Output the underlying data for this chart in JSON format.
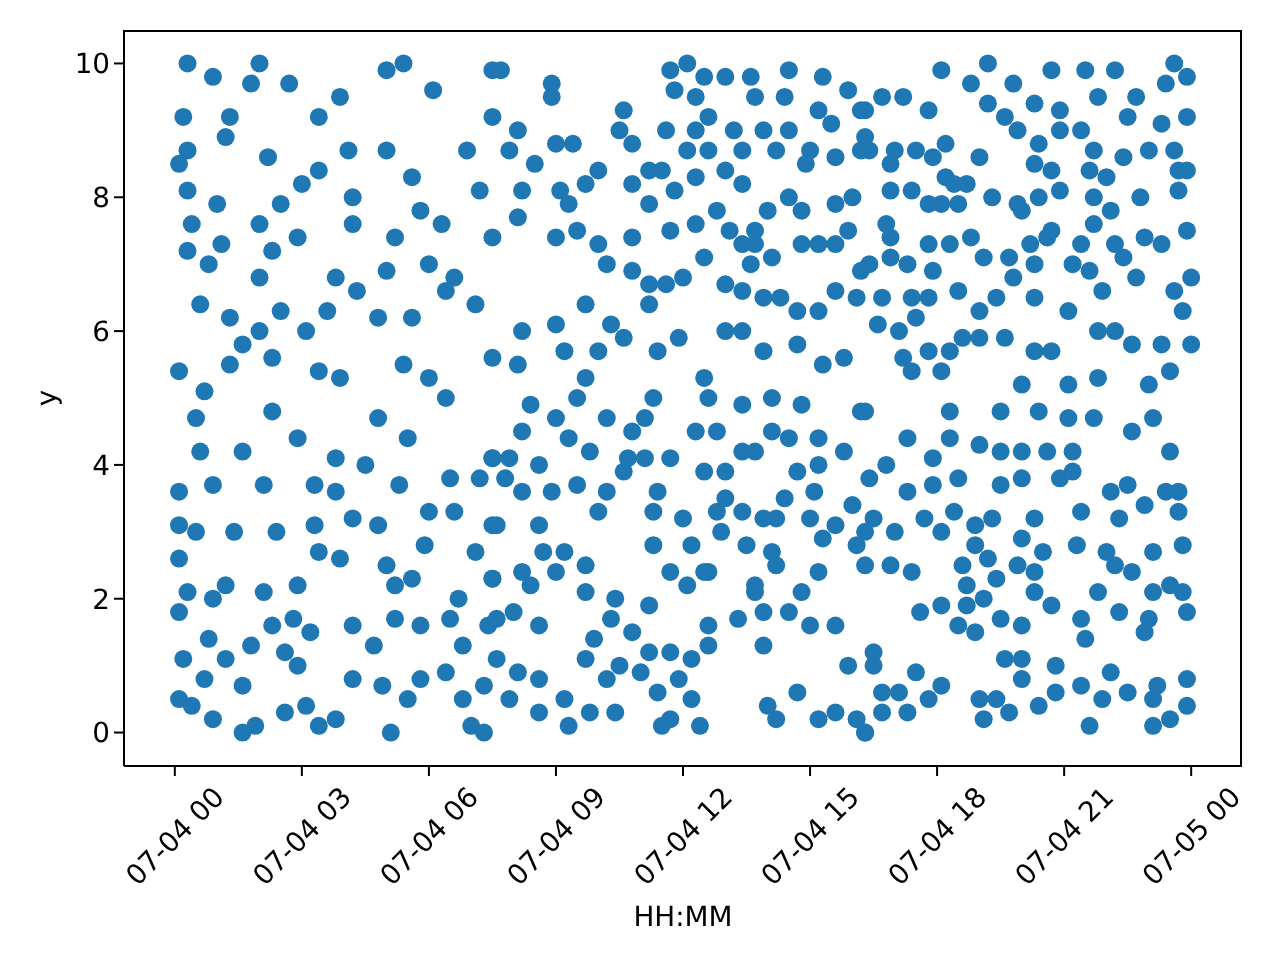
{
  "chart_data": {
    "type": "scatter",
    "xlabel": "HH:MM",
    "ylabel": "y",
    "color": "#1f77b4",
    "marker": "circle",
    "xlim": [
      "--07-03T22:48",
      "--07-05T01:12"
    ],
    "xticks": [
      {
        "value": "--07-04T00:00",
        "label": "07-04 00"
      },
      {
        "value": "--07-04T03:00",
        "label": "07-04 03"
      },
      {
        "value": "--07-04T06:00",
        "label": "07-04 06"
      },
      {
        "value": "--07-04T09:00",
        "label": "07-04 09"
      },
      {
        "value": "--07-04T12:00",
        "label": "07-04 12"
      },
      {
        "value": "--07-04T15:00",
        "label": "07-04 15"
      },
      {
        "value": "--07-04T18:00",
        "label": "07-04 18"
      },
      {
        "value": "--07-04T21:00",
        "label": "07-04 21"
      },
      {
        "value": "--07-05T00:00",
        "label": "07-05 00"
      }
    ],
    "ylim": [
      -0.5,
      10.5
    ],
    "yticks": [
      0,
      2,
      4,
      6,
      8,
      10
    ],
    "x": [
      "--07-04T00:18",
      "--07-04T02:00",
      "--07-04T00:54",
      "--07-04T01:48",
      "--07-04T02:42",
      "--07-04T00:12",
      "--07-04T01:18",
      "--07-04T03:24",
      "--07-04T05:00",
      "--07-04T05:24",
      "--07-04T03:54",
      "--07-04T06:06",
      "--07-04T07:30",
      "--07-04T00:06",
      "--07-04T00:18",
      "--07-04T01:12",
      "--07-04T02:12",
      "--07-04T03:00",
      "--07-04T03:24",
      "--07-04T04:06",
      "--07-04T05:00",
      "--07-04T05:36",
      "--07-04T06:54",
      "--07-04T00:18",
      "--07-04T01:00",
      "--07-04T02:30",
      "--07-04T04:12",
      "--07-04T05:48",
      "--07-04T06:18",
      "--07-04T07:12",
      "--07-04T00:24",
      "--07-04T02:00",
      "--07-04T02:54",
      "--07-04T04:12",
      "--07-04T05:12",
      "--07-04T07:30",
      "--07-04T00:18",
      "--07-04T01:06",
      "--07-04T02:18",
      "--07-04T03:48",
      "--07-04T05:00",
      "--07-04T06:00",
      "--07-04T06:36",
      "--07-04T00:48",
      "--07-04T00:36",
      "--07-04T02:00",
      "--07-04T01:18",
      "--07-04T02:00",
      "--07-04T02:30",
      "--07-04T03:06",
      "--07-04T03:36",
      "--07-04T04:18",
      "--07-04T04:48",
      "--07-04T05:36",
      "--07-04T06:24",
      "--07-04T07:06",
      "--07-04T00:06",
      "--07-04T00:42",
      "--07-04T01:18",
      "--07-04T01:36",
      "--07-04T02:18",
      "--07-04T03:24",
      "--07-04T03:54",
      "--07-04T05:24",
      "--07-04T06:00",
      "--07-04T07:30",
      "--07-04T00:06",
      "--07-04T00:06",
      "--07-04T00:30",
      "--07-04T00:06",
      "--07-04T00:18",
      "--07-04T00:06",
      "--07-04T00:12",
      "--07-04T00:06",
      "--07-04T00:24",
      "--07-04T00:30",
      "--07-04T00:36",
      "--07-04T00:54",
      "--07-04T01:24",
      "--07-04T01:12",
      "--07-04T00:54",
      "--07-04T00:48",
      "--07-04T01:12",
      "--07-04T00:42",
      "--07-04T00:54",
      "--07-04T01:36",
      "--07-04T01:54",
      "--07-04T01:36",
      "--07-04T01:48",
      "--07-04T02:06",
      "--07-04T01:36",
      "--07-04T02:06",
      "--07-04T02:24",
      "--07-04T02:18",
      "--07-04T02:54",
      "--07-04T03:18",
      "--07-04T03:18",
      "--07-04T02:54",
      "--07-04T02:48",
      "--07-04T02:18",
      "--07-04T02:36",
      "--07-04T02:54",
      "--07-04T03:06",
      "--07-04T02:36",
      "--07-04T03:24",
      "--07-04T03:48",
      "--07-04T03:12",
      "--07-04T03:48",
      "--07-04T03:48",
      "--07-04T03:24",
      "--07-04T03:54",
      "--07-04T04:12",
      "--07-04T04:48",
      "--07-04T04:30",
      "--07-04T04:48",
      "--07-04T05:30",
      "--07-04T05:18",
      "--07-04T06:00",
      "--07-04T05:54",
      "--07-04T05:00",
      "--07-04T05:12",
      "--07-04T05:36",
      "--07-04T05:12",
      "--07-04T05:48",
      "--07-04T04:12",
      "--07-04T04:42",
      "--07-04T04:12",
      "--07-04T04:54",
      "--07-04T05:06",
      "--07-04T05:30",
      "--07-04T05:48",
      "--07-04T06:24",
      "--07-04T06:48",
      "--07-04T07:00",
      "--07-04T07:18",
      "--07-04T06:30",
      "--07-04T06:36",
      "--07-04T07:06",
      "--07-04T06:42",
      "--07-04T06:30",
      "--07-04T06:48",
      "--07-04T07:24",
      "--07-04T07:30",
      "--07-04T07:30",
      "--07-04T07:12",
      "--07-04T07:30",
      "--07-04T06:24",
      "--07-04T07:18",
      "--07-04T07:42",
      "--07-04T08:54",
      "--07-04T08:54",
      "--07-04T07:30",
      "--07-04T08:06",
      "--07-04T07:54",
      "--07-04T08:30",
      "--07-04T09:00",
      "--07-04T09:24",
      "--07-04T08:12",
      "--07-04T09:06",
      "--07-04T09:18",
      "--07-04T08:06",
      "--07-04T09:30",
      "--07-04T09:00",
      "--07-04T10:00",
      "--07-04T10:36",
      "--07-04T10:30",
      "--07-04T10:48",
      "--07-04T09:42",
      "--07-04T10:48",
      "--07-04T11:12",
      "--07-04T10:00",
      "--07-04T10:12",
      "--07-04T10:48",
      "--07-04T10:48",
      "--07-04T11:42",
      "--07-04T11:12",
      "--07-04T11:36",
      "--07-04T12:00",
      "--07-04T11:42",
      "--07-04T12:06",
      "--07-04T11:48",
      "--07-04T12:30",
      "--07-04T13:00",
      "--07-04T13:36",
      "--07-04T14:30",
      "--07-04T15:18",
      "--07-04T15:54",
      "--07-04T12:18",
      "--07-04T12:36",
      "--07-04T13:42",
      "--07-04T14:24",
      "--07-04T15:12",
      "--07-04T11:36",
      "--07-04T12:18",
      "--07-04T13:12",
      "--07-04T13:54",
      "--07-04T14:30",
      "--07-04T15:30",
      "--07-04T16:12",
      "--07-04T12:06",
      "--07-04T12:36",
      "--07-04T13:24",
      "--07-04T14:12",
      "--07-04T15:00",
      "--07-04T16:12",
      "--07-04T11:30",
      "--07-04T12:18",
      "--07-04T13:00",
      "--07-04T14:54",
      "--07-04T15:36",
      "--07-04T11:12",
      "--07-04T11:48",
      "--07-04T13:24",
      "--07-04T14:30",
      "--07-04T16:00",
      "--07-04T12:48",
      "--07-04T14:00",
      "--07-04T14:48",
      "--07-04T15:36",
      "--07-04T12:18",
      "--07-04T13:06",
      "--07-04T13:42",
      "--07-04T13:42",
      "--07-04T15:54",
      "--07-04T12:30",
      "--07-04T13:24",
      "--07-04T14:06",
      "--07-04T14:48",
      "--07-04T15:12",
      "--07-04T15:36",
      "--07-04T13:36",
      "--07-04T13:00",
      "--07-04T13:24",
      "--07-04T13:54",
      "--07-04T14:18",
      "--07-04T14:42",
      "--07-04T15:12",
      "--07-04T15:36",
      "--07-04T16:12",
      "--07-04T16:06",
      "--07-04T08:12",
      "--07-04T09:00",
      "--07-04T09:42",
      "--07-04T10:18",
      "--07-04T11:12",
      "--07-04T10:36",
      "--07-04T09:12",
      "--07-04T10:00",
      "--07-04T11:24",
      "--07-04T11:54",
      "--07-04T13:00",
      "--07-04T13:24",
      "--07-04T13:54",
      "--07-04T14:42",
      "--07-04T15:48",
      "--07-04T15:18",
      "--07-04T08:06",
      "--07-04T09:42",
      "--07-04T12:30",
      "--07-04T08:24",
      "--07-04T09:00",
      "--07-04T09:30",
      "--07-04T08:12",
      "--07-04T09:18",
      "--07-04T09:48",
      "--07-04T07:30",
      "--07-04T07:54",
      "--07-04T08:36",
      "--07-04T07:48",
      "--07-04T08:12",
      "--07-04T08:54",
      "--07-04T09:30",
      "--07-04T10:12",
      "--07-04T07:36",
      "--07-04T08:36",
      "--07-04T10:00",
      "--07-04T08:42",
      "--07-04T09:12",
      "--07-04T09:00",
      "--07-04T09:42",
      "--07-04T08:12",
      "--07-04T07:30",
      "--07-04T08:24",
      "--07-04T09:42",
      "--07-04T08:00",
      "--07-04T07:36",
      "--07-04T08:36",
      "--07-04T07:36",
      "--07-04T08:06",
      "--07-04T08:36",
      "--07-04T07:54",
      "--07-04T08:36",
      "--07-04T09:18",
      "--07-04T09:48",
      "--07-04T10:24",
      "--07-04T09:12",
      "--07-04T09:42",
      "--07-04T10:12",
      "--07-04T10:30",
      "--07-04T10:18",
      "--07-04T09:54",
      "--07-04T10:24",
      "--07-04T10:48",
      "--07-04T11:12",
      "--07-04T11:00",
      "--07-04T11:24",
      "--07-04T11:30",
      "--07-04T11:42",
      "--07-04T12:12",
      "--07-04T12:24",
      "--07-04T11:54",
      "--07-04T11:42",
      "--07-04T12:12",
      "--07-04T12:36",
      "--07-04T12:36",
      "--07-04T13:18",
      "--07-04T13:54",
      "--07-04T14:00",
      "--07-04T14:12",
      "--07-04T14:42",
      "--07-04T15:12",
      "--07-04T15:36",
      "--07-04T16:06",
      "--07-04T16:18",
      "--07-04T15:54",
      "--07-04T11:12",
      "--07-04T11:42",
      "--07-04T12:36",
      "--07-04T12:06",
      "--07-04T13:42",
      "--07-04T13:54",
      "--07-04T14:30",
      "--07-04T15:00",
      "--07-04T15:36",
      "--07-04T14:48",
      "--07-04T15:12",
      "--07-04T14:12",
      "--07-04T11:18",
      "--07-04T12:12",
      "--07-04T12:30",
      "--07-04T12:54",
      "--07-04T13:30",
      "--07-04T14:06",
      "--07-04T13:42",
      "--07-04T12:48",
      "--07-04T13:24",
      "--07-04T11:18",
      "--07-04T12:00",
      "--07-04T11:24",
      "--07-04T10:36",
      "--07-04T11:06",
      "--07-04T10:42",
      "--07-04T11:42",
      "--07-04T12:30",
      "--07-04T13:00",
      "--07-04T13:24",
      "--07-04T13:42",
      "--07-04T13:00",
      "--07-04T13:54",
      "--07-04T14:12",
      "--07-04T14:24",
      "--07-04T15:00",
      "--07-04T15:18",
      "--07-04T16:06",
      "--07-04T16:00",
      "--07-04T15:36",
      "--07-04T15:06",
      "--07-04T14:42",
      "--07-04T15:12",
      "--07-04T15:48",
      "--07-04T14:06",
      "--07-04T14:30",
      "--07-04T15:12",
      "--07-04T12:48",
      "--07-04T12:18",
      "--07-04T11:06",
      "--07-04T10:48",
      "--07-04T10:12",
      "--07-04T11:18",
      "--07-04T12:36",
      "--07-04T13:24",
      "--07-04T14:06",
      "--07-04T14:48",
      "--07-04T16:12",
      "--07-04T18:06",
      "--07-04T19:12",
      "--07-04T18:48",
      "--07-04T19:48",
      "--07-04T20:42",
      "--07-04T21:30",
      "--07-04T22:12",
      "--07-04T23:36",
      "--07-04T23:54",
      "--07-04T23:24",
      "--07-04T16:42",
      "--07-04T17:12",
      "--07-04T17:48",
      "--07-04T19:12",
      "--07-04T20:18",
      "--07-04T20:54",
      "--07-04T21:48",
      "--07-04T22:42",
      "--07-04T16:18",
      "--07-04T19:36",
      "--07-04T22:30",
      "--07-04T23:18",
      "--07-04T23:54",
      "--07-04T16:18",
      "--07-04T19:54",
      "--07-04T20:54",
      "--07-04T21:24",
      "--07-04T16:24",
      "--07-04T17:00",
      "--07-04T17:30",
      "--07-04T18:12",
      "--07-04T20:24",
      "--07-04T21:42",
      "--07-04T23:00",
      "--07-04T23:36",
      "--07-04T16:54",
      "--07-04T17:54",
      "--07-04T19:00",
      "--07-04T20:18",
      "--07-04T21:36",
      "--07-04T22:24",
      "--07-04T23:42",
      "--07-04T23:54",
      "--07-04T18:12",
      "--07-04T18:24",
      "--07-04T20:42",
      "--07-04T20:54",
      "--07-04T22:00",
      "--07-04T16:54",
      "--07-04T17:24",
      "--07-04T18:42",
      "--07-04T23:42",
      "--07-04T17:48",
      "--07-04T18:06",
      "--07-04T18:30",
      "--07-04T19:18",
      "--07-04T19:54",
      "--07-04T20:24",
      "--07-04T21:42",
      "--07-04T22:48",
      "--07-04T20:00",
      "--07-04T22:06",
      "--07-04T16:48",
      "--07-04T16:54",
      "--07-04T17:48",
      "--07-04T18:18",
      "--07-04T18:48",
      "--07-04T20:12",
      "--07-04T20:36",
      "--07-04T20:42",
      "--07-04T21:24",
      "--07-04T21:42",
      "--07-04T22:12",
      "--07-04T22:54",
      "--07-04T23:18",
      "--07-04T23:54",
      "--07-04T16:24",
      "--07-04T16:54",
      "--07-04T17:18",
      "--07-04T17:54",
      "--07-04T19:06",
      "--07-04T19:42",
      "--07-04T20:18",
      "--07-04T21:12",
      "--07-04T21:36",
      "--07-04T21:54",
      "--07-04T22:24",
      "--07-04T22:42",
      "--07-05T00:00",
      "--07-04T23:36",
      "--07-04T23:48",
      "--07-04T16:42",
      "--07-04T17:24",
      "--07-04T17:48",
      "--07-04T18:30",
      "--07-04T19:00",
      "--07-04T19:24",
      "--07-04T19:48",
      "--07-04T20:18",
      "--07-04T21:06",
      "--07-04T16:36",
      "--07-04T17:06",
      "--07-04T17:30",
      "--07-04T18:36",
      "--07-04T19:00",
      "--07-04T19:36",
      "--07-04T20:18",
      "--07-04T20:42",
      "--07-04T21:48",
      "--07-04T22:12",
      "--07-04T22:36",
      "--07-04T23:18",
      "--07-05T00:00",
      "--07-04T17:12",
      "--07-04T17:48",
      "--07-04T18:18",
      "--07-04T17:24",
      "--07-04T18:06",
      "--07-04T20:00",
      "--07-04T21:06",
      "--07-04T21:48",
      "--07-04T23:00",
      "--07-04T23:30",
      "--07-04T16:18",
      "--07-04T18:18",
      "--07-04T19:30",
      "--07-04T20:24",
      "--07-04T21:06",
      "--07-04T21:42",
      "--07-04T22:36",
      "--07-04T23:06",
      "--07-04T17:18",
      "--07-04T18:18",
      "--07-04T19:00",
      "--07-04T19:30",
      "--07-04T20:00",
      "--07-04T20:36",
      "--07-04T21:12",
      "--07-04T23:30",
      "--07-04T16:48",
      "--07-04T17:54",
      "--07-04T16:24",
      "--07-04T17:18",
      "--07-04T17:54",
      "--07-04T18:30",
      "--07-04T19:30",
      "--07-04T20:00",
      "--07-04T20:54",
      "--07-04T21:12",
      "--07-04T22:06",
      "--07-04T22:30",
      "--07-04T23:24",
      "--07-04T23:42",
      "--07-04T16:30",
      "--07-04T17:42",
      "--07-04T18:24",
      "--07-04T18:54",
      "--07-04T19:18",
      "--07-04T20:18",
      "--07-04T21:24",
      "--07-04T22:18",
      "--07-04T22:54",
      "--07-04T23:42",
      "--07-04T16:18",
      "--07-04T17:00",
      "--07-04T18:06",
      "--07-04T18:54",
      "--07-04T20:00",
      "--07-04T20:30",
      "--07-04T21:18",
      "--07-04T22:00",
      "--07-04T23:06",
      "--07-04T23:48",
      "--07-04T16:18",
      "--07-04T16:54",
      "--07-04T17:24",
      "--07-04T18:36",
      "--07-04T19:12",
      "--07-04T19:54",
      "--07-04T20:18",
      "--07-04T22:12",
      "--07-04T22:36",
      "--07-04T18:42",
      "--07-04T19:24",
      "--07-04T20:18",
      "--07-04T23:06",
      "--07-04T23:30",
      "--07-04T23:48",
      "--07-04T17:36",
      "--07-04T18:06",
      "--07-04T19:06",
      "--07-04T18:42",
      "--07-04T20:42",
      "--07-04T21:24",
      "--07-04T21:48",
      "--07-04T22:18",
      "--07-04T23:00",
      "--07-04T23:54",
      "--07-04T18:30",
      "--07-04T19:30",
      "--07-04T18:54",
      "--07-04T20:00",
      "--07-04T21:30",
      "--07-04T22:54",
      "--07-04T16:30",
      "--07-04T16:30",
      "--07-04T17:30",
      "--07-04T18:06",
      "--07-04T19:36",
      "--07-04T20:00",
      "--07-04T20:00",
      "--07-04T20:48",
      "--07-04T21:24",
      "--07-04T22:06",
      "--07-04T23:12",
      "--07-04T23:54",
      "--07-04T16:42",
      "--07-04T17:06",
      "--07-04T17:48",
      "--07-04T16:42",
      "--07-04T17:18",
      "--07-04T16:18",
      "--07-04T19:00",
      "--07-04T19:06",
      "--07-04T19:24",
      "--07-04T19:42",
      "--07-04T20:24",
      "--07-04T20:48",
      "--07-04T21:36",
      "--07-04T21:54",
      "--07-04T22:30",
      "--07-04T23:06",
      "--07-04T23:06",
      "--07-04T23:30",
      "--07-04T23:54"
    ],
    "values": [
      10.0,
      10.0,
      9.8,
      9.7,
      9.7,
      9.2,
      9.2,
      9.2,
      9.9,
      10.0,
      9.5,
      9.6,
      9.9,
      8.5,
      8.7,
      8.9,
      8.6,
      8.2,
      8.4,
      8.7,
      8.7,
      8.3,
      8.7,
      8.1,
      7.9,
      7.9,
      8.0,
      7.8,
      7.6,
      8.1,
      7.6,
      7.6,
      7.4,
      7.6,
      7.4,
      7.4,
      7.2,
      7.3,
      7.2,
      6.8,
      6.9,
      7.0,
      6.8,
      7.0,
      6.4,
      6.8,
      6.2,
      6.0,
      6.3,
      6.0,
      6.3,
      6.6,
      6.2,
      6.2,
      6.6,
      6.4,
      5.4,
      5.1,
      5.5,
      5.8,
      5.6,
      5.4,
      5.3,
      5.5,
      5.3,
      5.6,
      3.6,
      3.1,
      3.0,
      2.6,
      2.1,
      1.8,
      1.1,
      0.5,
      0.4,
      4.7,
      4.2,
      3.7,
      3.0,
      2.2,
      2.0,
      1.4,
      1.1,
      0.8,
      0.2,
      0.0,
      0.1,
      0.7,
      1.3,
      2.1,
      4.2,
      3.7,
      3.0,
      4.8,
      4.4,
      3.7,
      3.1,
      2.2,
      1.7,
      1.6,
      1.2,
      1.0,
      0.4,
      0.3,
      0.1,
      0.2,
      1.5,
      4.1,
      3.6,
      2.7,
      2.6,
      3.2,
      3.1,
      4.0,
      4.7,
      4.4,
      3.7,
      3.3,
      2.8,
      2.5,
      2.2,
      2.3,
      1.7,
      1.6,
      1.6,
      1.3,
      0.8,
      0.7,
      0.0,
      0.5,
      0.8,
      0.9,
      0.5,
      0.1,
      0.0,
      3.8,
      3.3,
      2.7,
      2.0,
      1.7,
      1.3,
      1.6,
      2.3,
      3.1,
      3.8,
      4.1,
      5.0,
      0.7,
      9.9,
      9.7,
      9.5,
      9.2,
      9.0,
      8.7,
      8.5,
      8.8,
      8.8,
      8.1,
      8.1,
      7.9,
      7.7,
      7.5,
      7.4,
      8.4,
      9.3,
      9.0,
      8.8,
      8.2,
      8.2,
      7.9,
      7.3,
      7.0,
      6.9,
      7.4,
      7.5,
      6.7,
      6.7,
      6.8,
      9.9,
      10.0,
      9.6,
      9.8,
      9.8,
      9.8,
      9.9,
      9.8,
      9.6,
      9.5,
      9.2,
      9.5,
      9.5,
      9.3,
      9.0,
      9.0,
      9.0,
      9.0,
      9.0,
      9.1,
      9.3,
      8.7,
      8.7,
      8.7,
      8.7,
      8.7,
      8.7,
      8.4,
      8.3,
      8.4,
      8.5,
      8.6,
      8.4,
      8.1,
      8.2,
      8.0,
      8.0,
      7.8,
      7.8,
      7.8,
      7.9,
      7.6,
      7.5,
      7.5,
      7.3,
      7.5,
      7.1,
      7.3,
      7.1,
      7.3,
      7.3,
      7.3,
      7.0,
      6.7,
      6.6,
      6.5,
      6.5,
      6.3,
      6.3,
      6.6,
      6.9,
      6.5,
      6.0,
      6.1,
      6.4,
      6.1,
      6.4,
      5.9,
      5.7,
      5.7,
      5.7,
      5.9,
      6.0,
      6.0,
      5.7,
      5.8,
      5.6,
      5.5,
      5.5,
      5.3,
      5.3,
      4.9,
      4.7,
      5.0,
      4.5,
      4.4,
      4.2,
      4.1,
      4.1,
      4.0,
      3.8,
      3.6,
      3.6,
      3.7,
      3.6,
      3.1,
      3.1,
      3.3,
      2.7,
      2.7,
      2.4,
      2.5,
      2.4,
      2.3,
      2.2,
      2.1,
      1.8,
      1.7,
      1.6,
      1.1,
      0.9,
      0.8,
      0.5,
      0.3,
      0.1,
      0.3,
      0.3,
      0.5,
      1.1,
      0.8,
      1.0,
      1.7,
      1.4,
      2.0,
      1.5,
      1.2,
      0.9,
      0.6,
      0.1,
      0.2,
      0.5,
      0.1,
      0.8,
      1.2,
      1.1,
      1.3,
      1.6,
      1.7,
      1.3,
      0.4,
      0.2,
      0.6,
      0.2,
      0.3,
      0.2,
      0.0,
      1.0,
      1.9,
      2.4,
      2.4,
      2.2,
      2.1,
      1.8,
      1.8,
      1.6,
      1.6,
      2.1,
      2.4,
      2.5,
      2.8,
      2.8,
      2.4,
      3.0,
      2.8,
      2.7,
      2.2,
      3.3,
      3.3,
      3.3,
      3.2,
      3.6,
      3.9,
      4.1,
      4.1,
      4.1,
      3.9,
      3.9,
      4.2,
      4.2,
      3.5,
      3.2,
      3.2,
      3.5,
      3.2,
      2.9,
      2.8,
      3.4,
      3.1,
      3.6,
      3.9,
      4.0,
      4.2,
      4.5,
      4.4,
      4.4,
      4.5,
      4.5,
      4.7,
      4.5,
      4.7,
      5.0,
      5.0,
      4.9,
      5.0,
      4.9,
      4.8,
      9.9,
      10.0,
      9.7,
      9.7,
      9.9,
      9.9,
      9.9,
      10.0,
      9.8,
      9.7,
      9.5,
      9.5,
      9.3,
      9.4,
      9.4,
      9.3,
      9.5,
      9.5,
      9.3,
      9.2,
      9.2,
      9.1,
      9.2,
      8.9,
      9.0,
      9.0,
      9.0,
      8.7,
      8.7,
      8.7,
      8.8,
      8.8,
      8.7,
      8.7,
      8.7,
      8.5,
      8.6,
      8.6,
      8.5,
      8.4,
      8.6,
      8.4,
      8.4,
      8.3,
      8.2,
      8.4,
      8.1,
      8.3,
      8.1,
      8.1,
      8.2,
      8.1,
      7.9,
      7.9,
      7.9,
      8.0,
      7.9,
      8.0,
      8.0,
      8.0,
      7.8,
      7.8,
      7.6,
      7.4,
      7.3,
      7.3,
      7.4,
      7.3,
      7.4,
      7.5,
      7.3,
      7.6,
      7.3,
      7.4,
      7.3,
      7.5,
      7.0,
      7.1,
      7.0,
      6.9,
      7.1,
      7.1,
      7.0,
      7.0,
      6.9,
      6.6,
      7.1,
      6.8,
      6.8,
      6.6,
      6.3,
      6.5,
      6.5,
      6.5,
      6.6,
      6.3,
      6.5,
      6.8,
      6.5,
      6.3,
      6.1,
      6.0,
      6.2,
      5.9,
      5.9,
      5.9,
      5.7,
      5.7,
      6.0,
      6.0,
      5.8,
      5.8,
      5.8,
      5.6,
      5.7,
      5.7,
      5.4,
      5.4,
      5.2,
      5.2,
      5.3,
      5.2,
      5.4,
      4.8,
      4.8,
      4.8,
      4.8,
      4.7,
      4.7,
      4.5,
      4.7,
      4.4,
      4.4,
      4.3,
      4.2,
      4.2,
      4.2,
      4.2,
      4.2,
      4.0,
      4.1,
      3.8,
      3.6,
      3.7,
      3.8,
      3.7,
      3.8,
      3.8,
      3.9,
      3.6,
      3.7,
      3.6,
      3.6,
      3.2,
      3.2,
      3.3,
      3.1,
      3.2,
      3.2,
      3.3,
      3.2,
      3.4,
      3.3,
      3.0,
      3.0,
      3.0,
      2.8,
      2.9,
      2.7,
      2.8,
      2.7,
      2.7,
      2.8,
      2.5,
      2.5,
      2.4,
      2.5,
      2.6,
      2.5,
      2.4,
      2.5,
      2.4,
      2.2,
      2.3,
      2.1,
      2.1,
      2.2,
      2.1,
      1.8,
      1.9,
      2.0,
      1.9,
      1.9,
      1.7,
      2.1,
      1.8,
      1.7,
      1.8,
      1.6,
      1.7,
      1.5,
      1.6,
      1.4,
      1.5,
      1.2,
      1.0,
      0.9,
      0.7,
      1.1,
      1.1,
      0.8,
      1.0,
      0.7,
      0.9,
      0.7,
      0.8,
      0.6,
      0.6,
      0.5,
      0.3,
      0.3,
      0.0,
      0.5,
      0.2,
      0.5,
      0.3,
      0.4,
      0.6,
      0.1,
      0.5,
      0.6,
      0.5,
      0.1,
      0.2,
      0.4
    ]
  }
}
